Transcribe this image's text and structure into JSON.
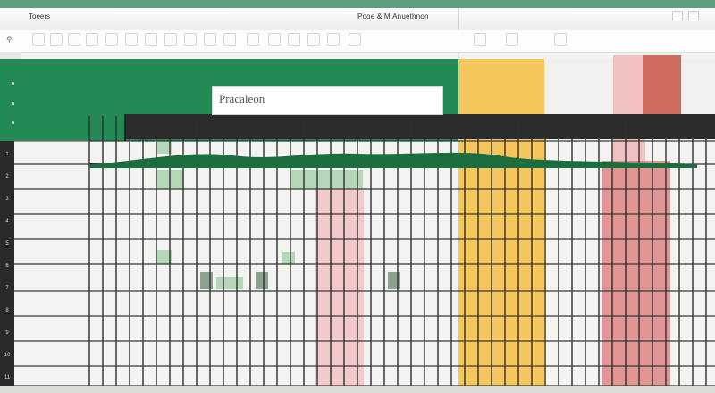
{
  "window": {
    "app_name": "Toeers",
    "doc_title": "Pooe & M.Anuethnon"
  },
  "name_box": {
    "value": "Pracaleon"
  },
  "icons": {
    "location": "location-icon",
    "ribbon": [
      "A",
      "B",
      "C",
      "D",
      "E",
      "F",
      "G",
      "H",
      "I",
      "J",
      "K",
      "L",
      "M",
      "N",
      "O",
      "P",
      "Q",
      "R",
      "S",
      "T"
    ]
  },
  "row_numbers": [
    "1",
    "2",
    "3",
    "4",
    "5",
    "6",
    "7",
    "8",
    "9",
    "10",
    "11"
  ],
  "colors": {
    "green": "#238a56",
    "yellow": "#f4c24f",
    "pink": "#f2c2c6",
    "red": "#dd8585"
  }
}
